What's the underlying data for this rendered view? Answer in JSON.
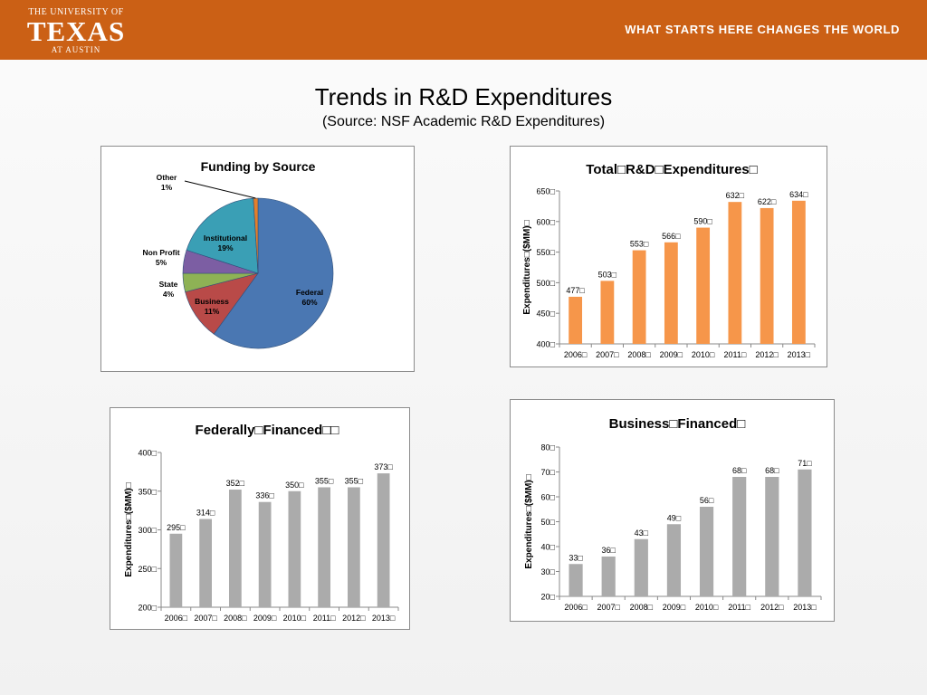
{
  "header": {
    "logo_line1": "THE UNIVERSITY OF",
    "logo_line2": "TEXAS",
    "logo_line3": "AT AUSTIN",
    "tagline": "WHAT STARTS HERE CHANGES THE WORLD"
  },
  "page": {
    "title": "Trends in R&D Expenditures",
    "subtitle": "(Source:  NSF Academic R&D Expenditures)"
  },
  "chart_data": [
    {
      "id": "funding",
      "type": "pie",
      "title": "Funding by Source",
      "slices": [
        {
          "name": "Federal",
          "label": "Federal",
          "pct": "60%",
          "value": 60,
          "color": "#4a77b2"
        },
        {
          "name": "Business",
          "label": "Business",
          "pct": "11%",
          "value": 11,
          "color": "#b94a48"
        },
        {
          "name": "State",
          "label": "State",
          "pct": "4%",
          "value": 4,
          "color": "#8eb255"
        },
        {
          "name": "Non Profit",
          "label": "Non Profit",
          "pct": "5%",
          "value": 5,
          "color": "#7c5ea3"
        },
        {
          "name": "Institutional",
          "label": "Institutional",
          "pct": "19%",
          "value": 19,
          "color": "#3a9fb5"
        },
        {
          "name": "Other",
          "label": "Other",
          "pct": "1%",
          "value": 1,
          "color": "#e47f2b"
        }
      ]
    },
    {
      "id": "total",
      "type": "bar",
      "title": "Total□R&D□Expenditures□",
      "ylabel": "Expenditures□($MM)□",
      "categories": [
        "2006□",
        "2007□",
        "2008□",
        "2009□",
        "2010□",
        "2011□",
        "2012□",
        "2013□"
      ],
      "values": [
        477,
        503,
        553,
        566,
        590,
        632,
        622,
        634
      ],
      "value_labels": [
        "477□",
        "503□",
        "553□",
        "566□",
        "590□",
        "632□",
        "622□",
        "634□"
      ],
      "ylim": [
        400,
        650
      ],
      "yticks": [
        400,
        450,
        500,
        550,
        600,
        650
      ],
      "ytick_labels": [
        "400□",
        "450□",
        "500□",
        "550□",
        "600□",
        "650□"
      ],
      "color": "#f6964a"
    },
    {
      "id": "federal",
      "type": "bar",
      "title": "Federally□Financed□□",
      "ylabel": "Expenditures□($MM)□",
      "categories": [
        "2006□",
        "2007□",
        "2008□",
        "2009□",
        "2010□",
        "2011□",
        "2012□",
        "2013□"
      ],
      "values": [
        295,
        314,
        352,
        336,
        350,
        355,
        355,
        373
      ],
      "value_labels": [
        "295□",
        "314□",
        "352□",
        "336□",
        "350□",
        "355□",
        "355□",
        "373□"
      ],
      "ylim": [
        200,
        400
      ],
      "yticks": [
        200,
        250,
        300,
        350,
        400
      ],
      "ytick_labels": [
        "200□",
        "250□",
        "300□",
        "350□",
        "400□"
      ],
      "color": "#ababab"
    },
    {
      "id": "business",
      "type": "bar",
      "title": "Business□Financed□",
      "ylabel": "Expenditures□($MM)□",
      "categories": [
        "2006□",
        "2007□",
        "2008□",
        "2009□",
        "2010□",
        "2011□",
        "2012□",
        "2013□"
      ],
      "values": [
        33,
        36,
        43,
        49,
        56,
        68,
        68,
        71
      ],
      "value_labels": [
        "33□",
        "36□",
        "43□",
        "49□",
        "56□",
        "68□",
        "68□",
        "71□"
      ],
      "ylim": [
        20,
        80
      ],
      "yticks": [
        20,
        30,
        40,
        50,
        60,
        70,
        80
      ],
      "ytick_labels": [
        "20□",
        "30□",
        "40□",
        "50□",
        "60□",
        "70□",
        "80□"
      ],
      "color": "#ababab"
    }
  ]
}
